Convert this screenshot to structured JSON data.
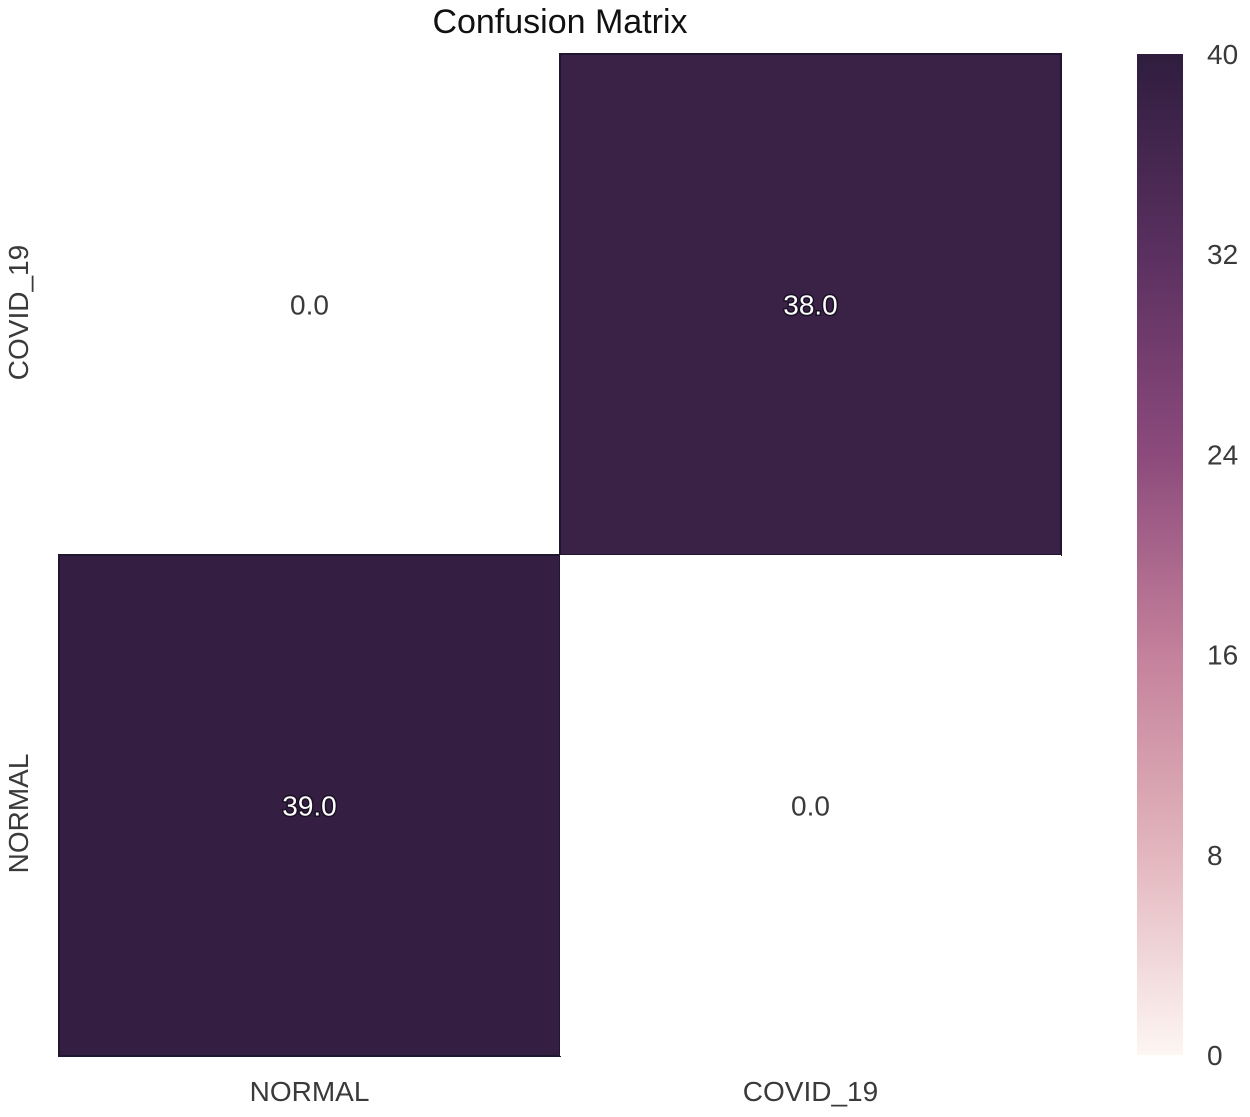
{
  "chart_data": {
    "type": "heatmap",
    "title": "Confusion Matrix",
    "x_categories": [
      "NORMAL",
      "COVID_19"
    ],
    "y_categories": [
      "COVID_19",
      "NORMAL"
    ],
    "values": [
      [
        0.0,
        38.0
      ],
      [
        39.0,
        0.0
      ]
    ],
    "cell_labels": [
      [
        "0.0",
        "38.0"
      ],
      [
        "39.0",
        "0.0"
      ]
    ],
    "colorbar": {
      "min": 0,
      "max": 40,
      "ticks": [
        0,
        8,
        16,
        24,
        32,
        40
      ],
      "tick_labels": [
        "0",
        "8",
        "16",
        "24",
        "32",
        "40"
      ]
    },
    "colormap": [
      "#fdf6f3",
      "#e3b6bd",
      "#c4819b",
      "#8c4a7c",
      "#5a3060",
      "#2f1d3e"
    ],
    "xlabel": "",
    "ylabel": "",
    "grid": false,
    "legend": "colorbar-right"
  }
}
